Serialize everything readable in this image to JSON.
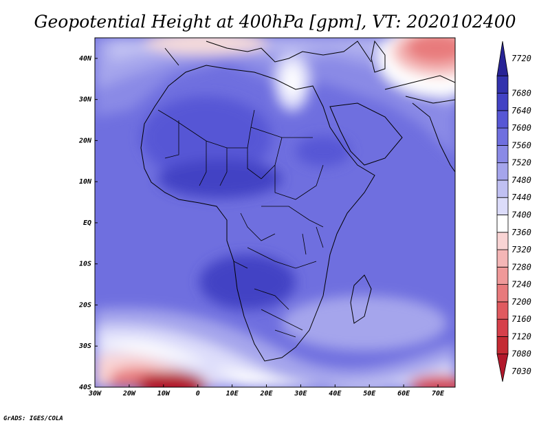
{
  "chart_data": {
    "type": "heatmap",
    "title": "Geopotential Height at 400hPa [gpm], VT: 2020102400",
    "x_ticks": [
      "30W",
      "20W",
      "10W",
      "0",
      "10E",
      "20E",
      "30E",
      "40E",
      "50E",
      "60E",
      "70E"
    ],
    "x_values": [
      -30,
      -20,
      -10,
      0,
      10,
      20,
      30,
      40,
      50,
      60,
      70
    ],
    "y_ticks": [
      "40N",
      "30N",
      "20N",
      "10N",
      "EQ",
      "10S",
      "20S",
      "30S",
      "40S"
    ],
    "y_values": [
      40,
      30,
      20,
      10,
      0,
      -10,
      -20,
      -30,
      -40
    ],
    "xlim": [
      -30,
      75
    ],
    "ylim": [
      -40,
      45
    ],
    "colorbar": {
      "levels": [
        7030,
        7080,
        7120,
        7160,
        7200,
        7240,
        7280,
        7320,
        7360,
        7400,
        7440,
        7480,
        7520,
        7560,
        7600,
        7640,
        7680,
        7720
      ],
      "labels": [
        "7030",
        "7080",
        "7120",
        "7160",
        "7200",
        "7240",
        "7280",
        "7320",
        "7360",
        "7400",
        "7440",
        "7480",
        "7520",
        "7560",
        "7600",
        "7640",
        "7680",
        "7720"
      ],
      "colors": [
        "#b2182b",
        "#c42b33",
        "#d6404a",
        "#e05a5f",
        "#e87a7c",
        "#ef9999",
        "#f4b6b6",
        "#f9d4d4",
        "#ffffff",
        "#dcdcfa",
        "#c0c0f2",
        "#a5a5ec",
        "#8a8ae6",
        "#6f6fdf",
        "#5757d5",
        "#4242c4",
        "#3232ad",
        "#272395"
      ]
    }
  },
  "credit": "GrADS: IGES/COLA"
}
